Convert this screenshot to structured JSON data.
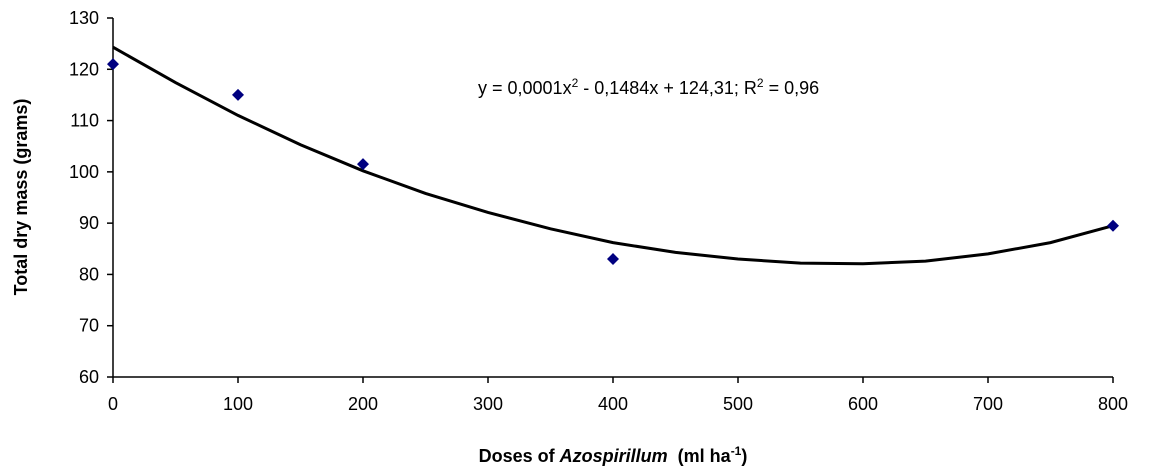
{
  "chart_data": {
    "type": "scatter",
    "x_label_parts": [
      {
        "text": "Doses of "
      },
      {
        "text": "Azospirillum",
        "style": "italic"
      },
      {
        "text": "  (ml ha"
      },
      {
        "text": "-1",
        "style": "sup"
      },
      {
        "text": ")"
      }
    ],
    "y_label": "Total dry mass (grams)",
    "annotation_parts": [
      {
        "text": "y = 0,0001x"
      },
      {
        "text": "2",
        "style": "sup"
      },
      {
        "text": " - 0,1484x + 124,31; R"
      },
      {
        "text": "2",
        "style": "sup"
      },
      {
        "text": " = 0,96"
      }
    ],
    "x": [
      0,
      100,
      200,
      400,
      800
    ],
    "series": [
      {
        "color": "#000080",
        "values": [
          121,
          115,
          101.5,
          83,
          89.5
        ]
      }
    ],
    "trendline": {
      "color": "#000000",
      "x": [
        0,
        50,
        100,
        150,
        200,
        250,
        300,
        350,
        400,
        450,
        500,
        550,
        600,
        650,
        700,
        750,
        800
      ],
      "values": [
        124.3,
        117.4,
        111,
        105.3,
        100.2,
        95.8,
        92.1,
        88.9,
        86.2,
        84.3,
        83,
        82.2,
        82.1,
        82.6,
        84,
        86.2,
        89.5
      ]
    },
    "xlim": [
      0,
      800
    ],
    "xticks": [
      0,
      100,
      200,
      300,
      400,
      500,
      600,
      700,
      800
    ],
    "ylim": [
      60,
      130
    ],
    "yticks": [
      60,
      70,
      80,
      90,
      100,
      110,
      120,
      130
    ],
    "grid": false
  }
}
